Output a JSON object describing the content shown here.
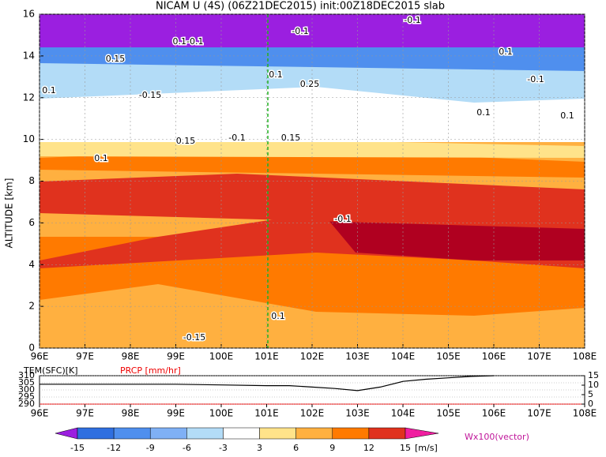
{
  "chart_data": [
    {
      "type": "contour",
      "title": "NICAM U (4S) (06Z21DEC2015) init:00Z18DEC2015 slab",
      "y_label": "ALTITUDE [km]",
      "xlim": [
        96,
        108
      ],
      "xticks": [
        {
          "value": 96,
          "label": "96E"
        },
        {
          "value": 97,
          "label": "97E"
        },
        {
          "value": 98,
          "label": "98E"
        },
        {
          "value": 99,
          "label": "99E"
        },
        {
          "value": 100,
          "label": "100E"
        },
        {
          "value": 101,
          "label": "101E"
        },
        {
          "value": 102,
          "label": "102E"
        },
        {
          "value": 103,
          "label": "103E"
        },
        {
          "value": 104,
          "label": "104E"
        },
        {
          "value": 105,
          "label": "105E"
        },
        {
          "value": 106,
          "label": "106E"
        },
        {
          "value": 107,
          "label": "107E"
        },
        {
          "value": 108,
          "label": "108E"
        }
      ],
      "ylim": [
        0,
        16
      ],
      "yticks": [
        0,
        2,
        4,
        6,
        8,
        10,
        12,
        14,
        16
      ],
      "annotations": [
        "-0.1",
        "-0.1",
        "0.1-0.1",
        "0.1",
        "-0.1",
        "0.1",
        "0.15",
        "0.1",
        "-0.15",
        "0.25",
        "0.1",
        "-0.1",
        "0.1",
        "0.1",
        "-0.15",
        "0.1",
        "-0.1",
        "0.15",
        "0.15"
      ],
      "colorbar": {
        "levels": [
          -15,
          -12,
          -9,
          -6,
          -3,
          3,
          6,
          9,
          12,
          15
        ],
        "colors": [
          "#9b1fe0",
          "#2f6fe0",
          "#4f8fee",
          "#7fb0f5",
          "#b3dcf7",
          "#ffffff",
          "#ffe38a",
          "#ffb040",
          "#ff7a00",
          "#e0321e",
          "#b00020",
          "#f01ea0"
        ],
        "unit": "[m/s]",
        "vector_label": "Wx100(vector)"
      }
    },
    {
      "type": "line",
      "label": "TEM(SFC)[K]",
      "label2": "PRCP [mm/hr]",
      "xlim": [
        96,
        108
      ],
      "xticks": [
        {
          "value": 96,
          "label": "96E"
        },
        {
          "value": 97,
          "label": "97E"
        },
        {
          "value": 98,
          "label": "98E"
        },
        {
          "value": 99,
          "label": "99E"
        },
        {
          "value": 100,
          "label": "100E"
        },
        {
          "value": 101,
          "label": "101E"
        },
        {
          "value": 102,
          "label": "102E"
        },
        {
          "value": 103,
          "label": "103E"
        },
        {
          "value": 104,
          "label": "104E"
        },
        {
          "value": 105,
          "label": "105E"
        },
        {
          "value": 106,
          "label": "106E"
        },
        {
          "value": 107,
          "label": "107E"
        },
        {
          "value": 108,
          "label": "108E"
        }
      ],
      "ylim": [
        290,
        310
      ],
      "yticks": [
        290,
        295,
        300,
        305,
        310
      ],
      "y2lim": [
        0,
        15
      ],
      "y2ticks": [
        0,
        5,
        10,
        15
      ],
      "series": [
        {
          "name": "TEM(SFC)[K]",
          "color": "#000000",
          "x": [
            96,
            97,
            98,
            99,
            100,
            101,
            101.5,
            102,
            102.5,
            103,
            103.5,
            104,
            104.5,
            105,
            105.5,
            106
          ],
          "values": [
            304,
            304,
            304,
            304,
            303.5,
            303,
            303,
            302,
            301,
            299.5,
            302,
            306,
            307.5,
            308.5,
            309.5,
            310
          ]
        }
      ]
    }
  ]
}
